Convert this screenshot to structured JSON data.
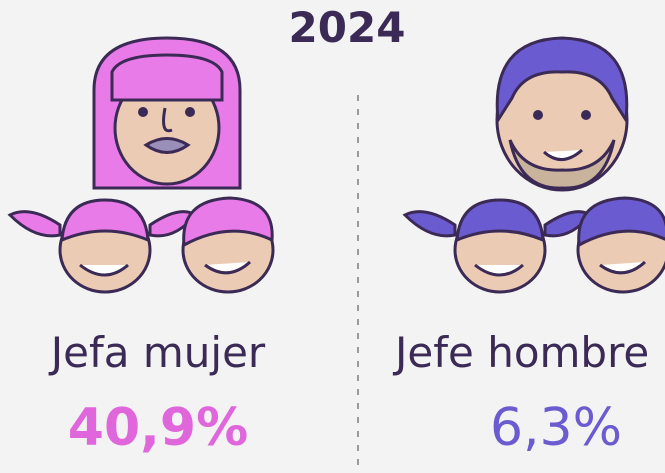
{
  "title": "2024",
  "panels": [
    {
      "label": "Jefa mujer",
      "value": "40,9%"
    },
    {
      "label": "Jefe hombre",
      "value": "6,3%"
    }
  ]
}
